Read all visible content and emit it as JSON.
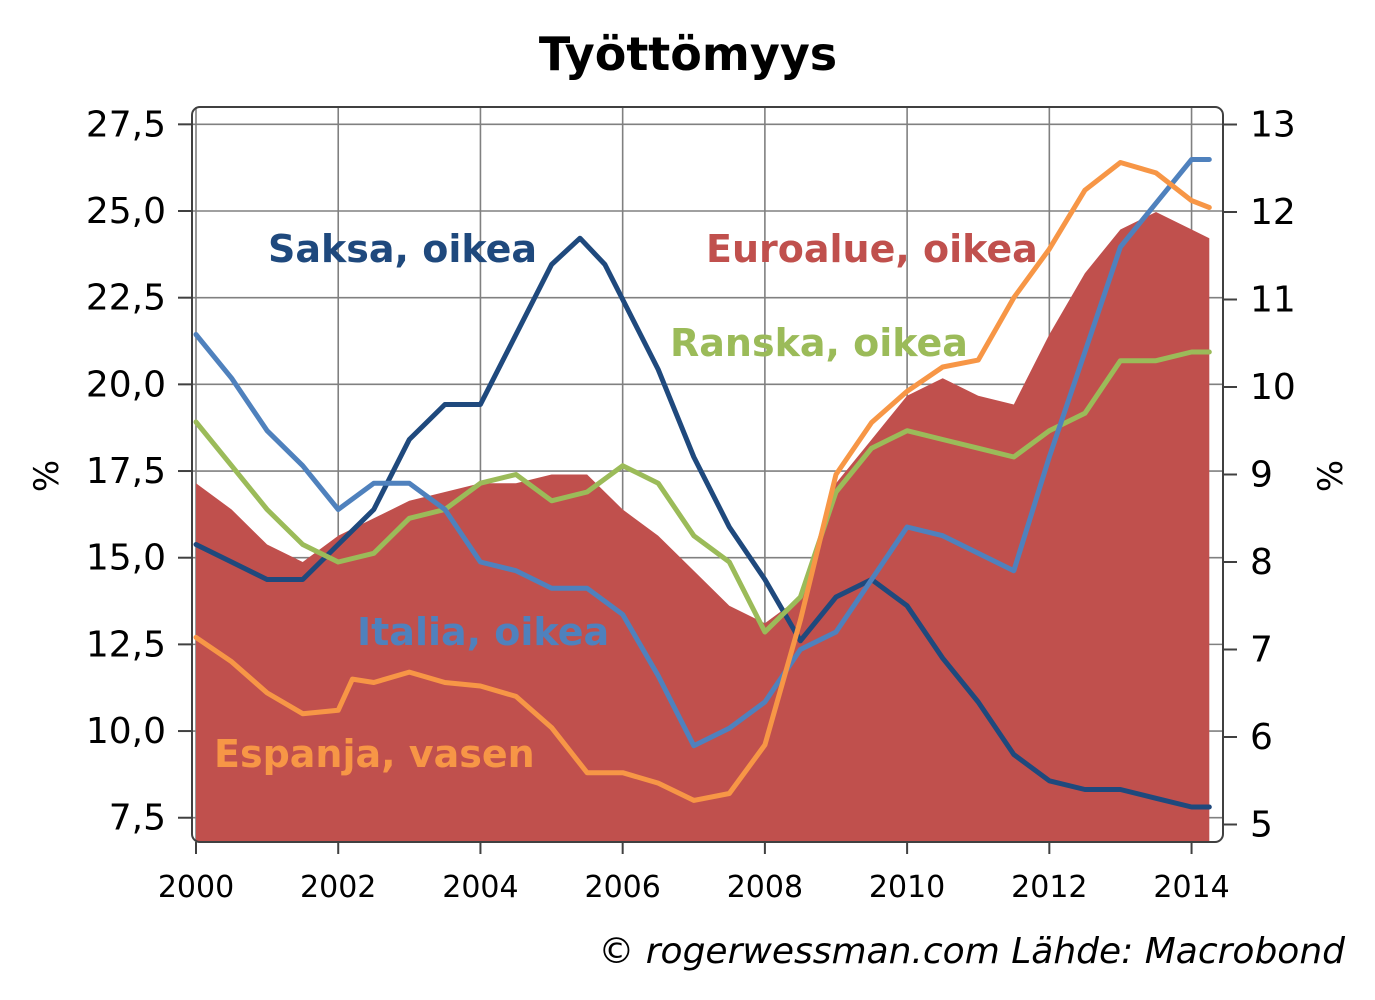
{
  "chart_data": {
    "type": "line",
    "title": "Työttömyys",
    "source": "© rogerwessman.com Lähde: Macrobond",
    "xlim": [
      2000,
      2014.4
    ],
    "x_ticks": [
      "2000",
      "2002",
      "2004",
      "2006",
      "2008",
      "2010",
      "2012",
      "2014"
    ],
    "y_left": {
      "label": "%",
      "ylim": [
        6.8,
        28.0
      ],
      "ticks": [
        "7,5",
        "10,0",
        "12,5",
        "15,0",
        "17,5",
        "20,0",
        "22,5",
        "25,0",
        "27,5"
      ]
    },
    "y_right": {
      "label": "%",
      "ylim": [
        4.8,
        13.2
      ],
      "ticks": [
        "5",
        "6",
        "7",
        "8",
        "9",
        "10",
        "11",
        "12",
        "13"
      ]
    },
    "grid": true,
    "series": [
      {
        "name": "Euroalue, oikea",
        "type": "area",
        "axis": "right",
        "color": "#c0504d",
        "x": [
          2000.0,
          2000.5,
          2001.0,
          2001.5,
          2002.0,
          2002.5,
          2003.0,
          2003.5,
          2004.0,
          2004.5,
          2005.0,
          2005.5,
          2006.0,
          2006.5,
          2007.0,
          2007.5,
          2008.0,
          2008.5,
          2009.0,
          2009.5,
          2010.0,
          2010.5,
          2011.0,
          2011.5,
          2012.0,
          2012.5,
          2013.0,
          2013.5,
          2014.0,
          2014.25
        ],
        "values": [
          8.9,
          8.6,
          8.2,
          8.0,
          8.3,
          8.5,
          8.7,
          8.8,
          8.9,
          8.9,
          9.0,
          9.0,
          8.6,
          8.3,
          7.9,
          7.5,
          7.3,
          7.6,
          8.9,
          9.4,
          9.9,
          10.1,
          9.9,
          9.8,
          10.6,
          11.3,
          11.8,
          12.0,
          11.8,
          11.7
        ]
      },
      {
        "name": "Saksa, oikea",
        "type": "line",
        "axis": "right",
        "color": "#1f497d",
        "x": [
          2000.0,
          2000.5,
          2001.0,
          2001.5,
          2002.0,
          2002.5,
          2003.0,
          2003.5,
          2004.0,
          2004.5,
          2005.0,
          2005.4,
          2005.75,
          2006.0,
          2006.5,
          2007.0,
          2007.5,
          2008.0,
          2008.5,
          2009.0,
          2009.5,
          2010.0,
          2010.5,
          2011.0,
          2011.5,
          2012.0,
          2012.5,
          2013.0,
          2013.5,
          2014.0,
          2014.25
        ],
        "values": [
          8.2,
          8.0,
          7.8,
          7.8,
          8.2,
          8.6,
          9.4,
          9.8,
          9.8,
          10.6,
          11.4,
          11.7,
          11.4,
          11.0,
          10.2,
          9.2,
          8.4,
          7.8,
          7.1,
          7.6,
          7.8,
          7.5,
          6.9,
          6.4,
          5.8,
          5.5,
          5.4,
          5.4,
          5.3,
          5.2,
          5.2
        ]
      },
      {
        "name": "Ranska, oikea",
        "type": "line",
        "axis": "right",
        "color": "#9bbb59",
        "x": [
          2000.0,
          2000.5,
          2001.0,
          2001.5,
          2002.0,
          2002.5,
          2003.0,
          2003.5,
          2004.0,
          2004.5,
          2005.0,
          2005.5,
          2006.0,
          2006.5,
          2007.0,
          2007.5,
          2008.0,
          2008.5,
          2009.0,
          2009.5,
          2010.0,
          2010.5,
          2011.0,
          2011.5,
          2012.0,
          2012.5,
          2013.0,
          2013.5,
          2014.0,
          2014.25
        ],
        "values": [
          9.6,
          9.1,
          8.6,
          8.2,
          8.0,
          8.1,
          8.5,
          8.6,
          8.9,
          9.0,
          8.7,
          8.8,
          9.1,
          8.9,
          8.3,
          8.0,
          7.2,
          7.6,
          8.8,
          9.3,
          9.5,
          9.4,
          9.3,
          9.2,
          9.5,
          9.7,
          10.3,
          10.3,
          10.4,
          10.4
        ]
      },
      {
        "name": "Italia, oikea",
        "type": "line",
        "axis": "right",
        "color": "#4f81bd",
        "x": [
          2000.0,
          2000.5,
          2001.0,
          2001.5,
          2002.0,
          2002.5,
          2003.0,
          2003.5,
          2004.0,
          2004.5,
          2005.0,
          2005.5,
          2006.0,
          2006.5,
          2007.0,
          2007.5,
          2008.0,
          2008.5,
          2009.0,
          2009.5,
          2010.0,
          2010.5,
          2011.0,
          2011.5,
          2012.0,
          2012.5,
          2013.0,
          2013.5,
          2014.0,
          2014.25
        ],
        "values": [
          10.6,
          10.1,
          9.5,
          9.1,
          8.6,
          8.9,
          8.9,
          8.6,
          8.0,
          7.9,
          7.7,
          7.7,
          7.4,
          6.7,
          5.9,
          6.1,
          6.4,
          7.0,
          7.2,
          7.8,
          8.4,
          8.3,
          8.1,
          7.9,
          9.2,
          10.4,
          11.6,
          12.1,
          12.6,
          12.6
        ]
      },
      {
        "name": "Espanja, vasen",
        "type": "line",
        "axis": "left",
        "color": "#f79646",
        "x": [
          2000.0,
          2000.5,
          2001.0,
          2001.5,
          2002.0,
          2002.2,
          2002.5,
          2003.0,
          2003.5,
          2004.0,
          2004.5,
          2005.0,
          2005.5,
          2006.0,
          2006.5,
          2007.0,
          2007.5,
          2008.0,
          2008.5,
          2009.0,
          2009.5,
          2010.0,
          2010.5,
          2011.0,
          2011.5,
          2012.0,
          2012.5,
          2013.0,
          2013.5,
          2014.0,
          2014.25
        ],
        "values": [
          12.7,
          12.0,
          11.1,
          10.5,
          10.6,
          11.5,
          11.4,
          11.7,
          11.4,
          11.3,
          11.0,
          10.1,
          8.8,
          8.8,
          8.5,
          8.0,
          8.2,
          9.6,
          13.2,
          17.4,
          18.9,
          19.8,
          20.5,
          20.7,
          22.5,
          23.9,
          25.6,
          26.4,
          26.1,
          25.3,
          25.1
        ]
      }
    ]
  }
}
